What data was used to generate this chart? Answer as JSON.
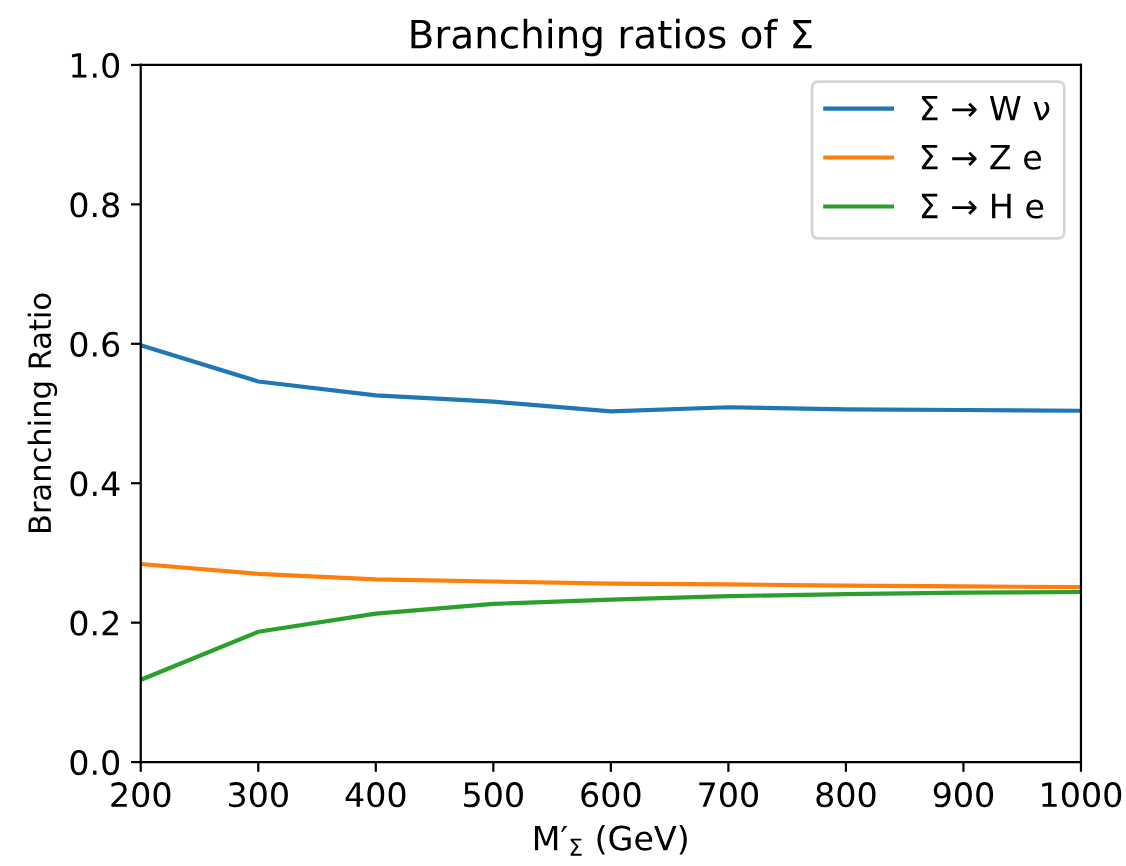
{
  "chart_data": {
    "type": "line",
    "title": "Branching ratios of Σ",
    "xlabel": "M′$_{Σ}$ (GeV)",
    "ylabel": "Branching Ratio",
    "x": [
      200,
      300,
      400,
      500,
      600,
      700,
      800,
      900,
      1000
    ],
    "series": [
      {
        "name": "Σ → W ν",
        "color": "#1f77b4",
        "values": [
          0.598,
          0.546,
          0.526,
          0.517,
          0.503,
          0.509,
          0.506,
          0.505,
          0.504
        ]
      },
      {
        "name": "Σ → Z e",
        "color": "#ff7f0e",
        "values": [
          0.284,
          0.27,
          0.262,
          0.259,
          0.256,
          0.255,
          0.253,
          0.252,
          0.251
        ]
      },
      {
        "name": "Σ → H e",
        "color": "#2ca02c",
        "values": [
          0.118,
          0.187,
          0.213,
          0.227,
          0.233,
          0.238,
          0.241,
          0.243,
          0.244
        ]
      }
    ],
    "xlim": [
      200,
      1000
    ],
    "ylim": [
      0,
      1.0
    ],
    "xticks": [
      200,
      300,
      400,
      500,
      600,
      700,
      800,
      900,
      1000
    ],
    "yticks": [
      {
        "value": 0,
        "label": "0.0"
      },
      {
        "value": 0.2,
        "label": "0.2"
      },
      {
        "value": 0.4,
        "label": "0.4"
      },
      {
        "value": 0.6,
        "label": "0.6"
      },
      {
        "value": 0.8,
        "label": "0.8"
      },
      {
        "value": 1.0,
        "label": "1.0"
      }
    ],
    "legend": "top right",
    "grid": false,
    "marker": "none",
    "line_style": "solid"
  }
}
